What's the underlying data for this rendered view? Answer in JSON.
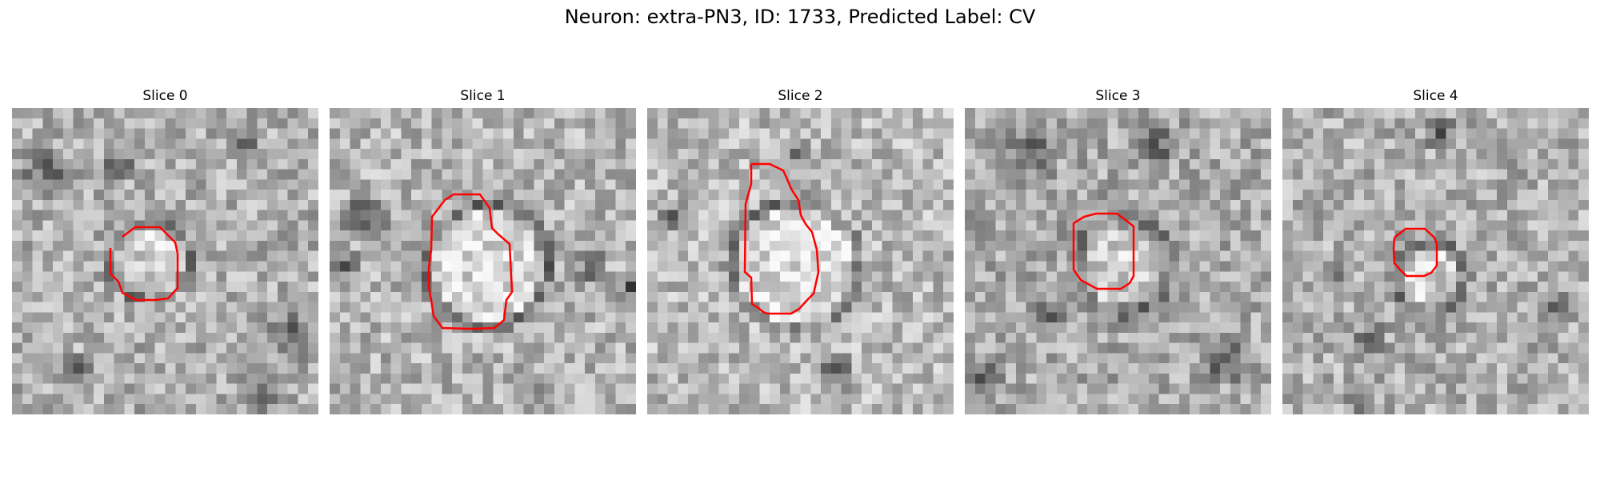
{
  "figure": {
    "title": "Neuron: extra-PN3, ID: 1733, Predicted Label: CV",
    "contour_color": "#ff0000"
  },
  "slices": [
    {
      "title": "Slice 0"
    },
    {
      "title": "Slice 1"
    },
    {
      "title": "Slice 2"
    },
    {
      "title": "Slice 3"
    },
    {
      "title": "Slice 4"
    }
  ]
}
